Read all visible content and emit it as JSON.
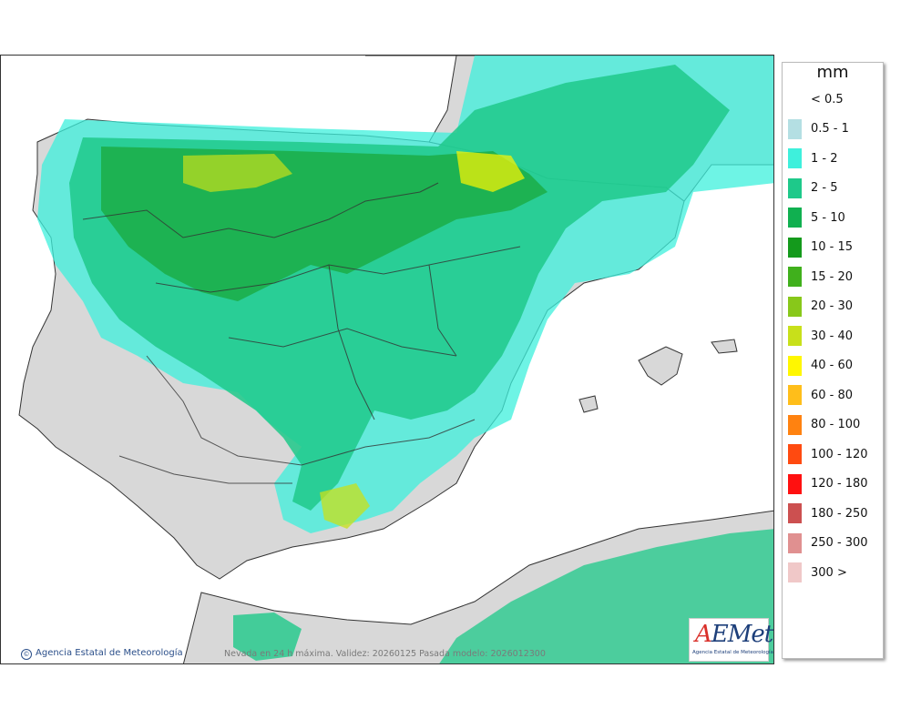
{
  "map": {
    "credit": "Agencia Estatal de Meteorología",
    "caption": "Nevada en 24 h máxima. Validez: 20260125 Pasada modelo: 2026012300",
    "logo_text": "AEMet",
    "logo_subtitle": "Agencia Estatal de Meteorología"
  },
  "legend": {
    "unit": "mm",
    "classes": [
      {
        "label": "< 0.5",
        "color": "#ffffff"
      },
      {
        "label": "0.5 - 1",
        "color": "#b4dfe3"
      },
      {
        "label": "1 - 2",
        "color": "#3ef0dc"
      },
      {
        "label": "2 - 5",
        "color": "#1ec98a"
      },
      {
        "label": "5 - 10",
        "color": "#10b050"
      },
      {
        "label": "10 - 15",
        "color": "#149a1c"
      },
      {
        "label": "15 - 20",
        "color": "#40b01c"
      },
      {
        "label": "20 - 30",
        "color": "#88c81a"
      },
      {
        "label": "30 - 40",
        "color": "#c8e01a"
      },
      {
        "label": "40 - 60",
        "color": "#fff700"
      },
      {
        "label": "60 - 80",
        "color": "#ffbe1a"
      },
      {
        "label": "80 - 100",
        "color": "#ff8210"
      },
      {
        "label": "100 - 120",
        "color": "#ff4a10"
      },
      {
        "label": "120 - 180",
        "color": "#ff1010"
      },
      {
        "label": "180 - 250",
        "color": "#cc5050"
      },
      {
        "label": "250 - 300",
        "color": "#e09090"
      },
      {
        "label": "300 >",
        "color": "#f0c8c8"
      }
    ]
  }
}
